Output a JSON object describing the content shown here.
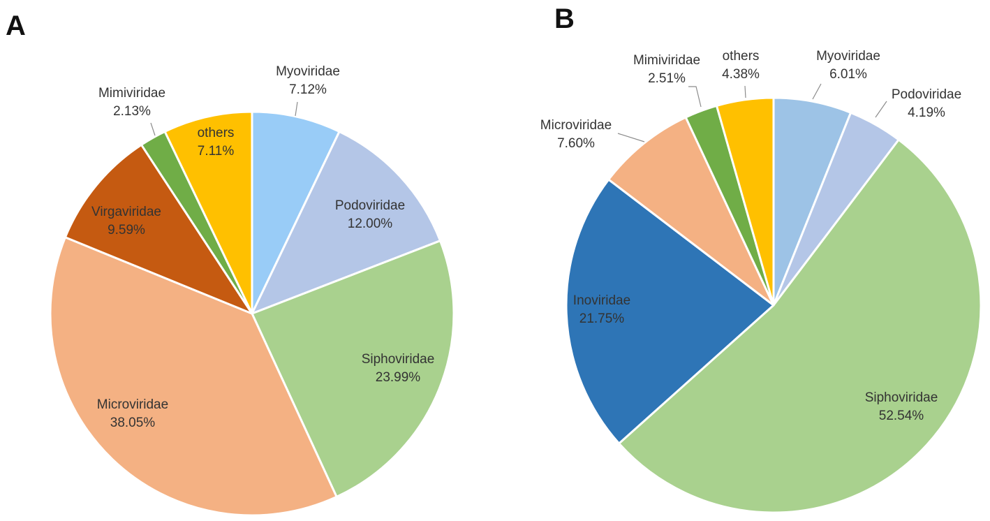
{
  "figure": {
    "panels": [
      "A",
      "B"
    ]
  },
  "chart_data": [
    {
      "type": "pie",
      "panel": "A",
      "title": "",
      "start": "12 o'clock, clockwise",
      "slices": [
        {
          "label": "Myoviridae",
          "value": 7.12,
          "display": "7.12%",
          "color": "#99CCF7",
          "label_position": "outside"
        },
        {
          "label": "Podoviridae",
          "value": 12.0,
          "display": "12.00%",
          "color": "#B4C6E7",
          "label_position": "inside"
        },
        {
          "label": "Siphoviridae",
          "value": 23.99,
          "display": "23.99%",
          "color": "#A9D18E",
          "label_position": "inside"
        },
        {
          "label": "Microviridae",
          "value": 38.05,
          "display": "38.05%",
          "color": "#F4B183",
          "label_position": "inside"
        },
        {
          "label": "Virgaviridae",
          "value": 9.59,
          "display": "9.59%",
          "color": "#C55A11",
          "label_position": "inside"
        },
        {
          "label": "Mimiviridae",
          "value": 2.13,
          "display": "2.13%",
          "color": "#70AD47",
          "label_position": "outside"
        },
        {
          "label": "others",
          "value": 7.11,
          "display": "7.11%",
          "color": "#FFC000",
          "label_position": "inside"
        }
      ]
    },
    {
      "type": "pie",
      "panel": "B",
      "title": "",
      "start": "12 o'clock, clockwise",
      "slices": [
        {
          "label": "Myoviridae",
          "value": 6.01,
          "display": "6.01%",
          "color": "#9DC3E6",
          "label_position": "outside"
        },
        {
          "label": "Podoviridae",
          "value": 4.19,
          "display": "4.19%",
          "color": "#B4C6E7",
          "label_position": "outside"
        },
        {
          "label": "Siphoviridae",
          "value": 52.54,
          "display": "52.54%",
          "color": "#A9D18E",
          "label_position": "inside"
        },
        {
          "label": "Inoviridae",
          "value": 21.75,
          "display": "21.75%",
          "color": "#2E75B6",
          "label_position": "inside"
        },
        {
          "label": "Microviridae",
          "value": 7.6,
          "display": "7.60%",
          "color": "#F4B183",
          "label_position": "outside"
        },
        {
          "label": "Mimiviridae",
          "value": 2.51,
          "display": "2.51%",
          "color": "#70AD47",
          "label_position": "outside"
        },
        {
          "label": "others",
          "value": 4.38,
          "display": "4.38%",
          "color": "#FFC000",
          "label_position": "outside"
        }
      ]
    }
  ]
}
